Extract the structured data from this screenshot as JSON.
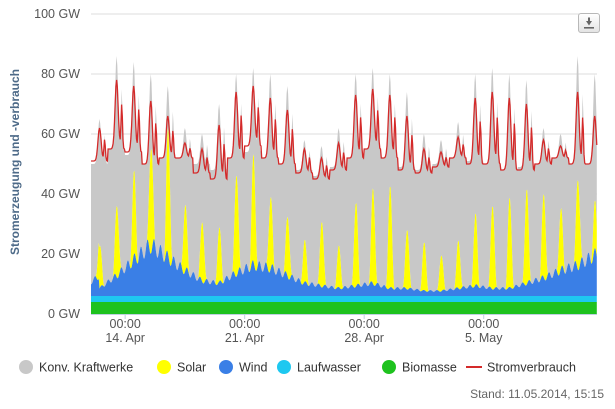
{
  "export_icon": "download-icon",
  "stand_text": "Stand: 11.05.2014, 15:15",
  "chart_data": {
    "type": "area",
    "title": "",
    "ylabel": "Stromerzeugung und -verbrauch",
    "ylim": [
      0,
      100
    ],
    "y_ticks": [
      "0 GW",
      "20 GW",
      "40 GW",
      "60 GW",
      "80 GW",
      "100 GW"
    ],
    "x_range": [
      "2014-04-12T00:00",
      "2014-05-11T15:15"
    ],
    "x_ticks": [
      {
        "time": "00:00",
        "date": "14. Apr",
        "x": "2014-04-14T00:00"
      },
      {
        "time": "00:00",
        "date": "21. Apr",
        "x": "2014-04-21T00:00"
      },
      {
        "time": "00:00",
        "date": "28. Apr",
        "x": "2014-04-28T00:00"
      },
      {
        "time": "00:00",
        "date": "5. May",
        "x": "2014-05-05T00:00"
      }
    ],
    "grid": true,
    "legend_position": "bottom",
    "series_order_bottom_to_top": [
      "Biomasse",
      "Laufwasser",
      "Wind",
      "Solar",
      "Konv. Kraftwerke"
    ],
    "series": [
      {
        "name": "Konv. Kraftwerke",
        "color": "#c8c8c8",
        "kind": "area",
        "daily_profile": {
          "night_total_GW": [
            50,
            55,
            53,
            50,
            52,
            52,
            50,
            48,
            52,
            54,
            52,
            50,
            48,
            46,
            49,
            52,
            55,
            52,
            49,
            48,
            50,
            52,
            51,
            50,
            48,
            49,
            50,
            52,
            50,
            50
          ],
          "peak_total_GW": [
            65,
            86,
            84,
            80,
            76,
            62,
            60,
            70,
            80,
            82,
            80,
            76,
            58,
            56,
            62,
            80,
            82,
            80,
            74,
            60,
            58,
            64,
            80,
            82,
            80,
            78,
            62,
            60,
            86,
            80
          ]
        }
      },
      {
        "name": "Solar",
        "color": "#ffff00",
        "kind": "area",
        "daily_peak_GW": [
          14,
          24,
          28,
          35,
          42,
          22,
          20,
          18,
          34,
          36,
          24,
          20,
          14,
          22,
          14,
          28,
          32,
          34,
          20,
          16,
          12,
          16,
          24,
          28,
          30,
          32,
          28,
          20,
          30,
          16
        ]
      },
      {
        "name": "Wind",
        "color": "#3a7fe6",
        "kind": "area",
        "daily_mean_GW": [
          3,
          8,
          14,
          20,
          15,
          10,
          6,
          5,
          9,
          12,
          11,
          8,
          5,
          4,
          3,
          4,
          5,
          3,
          3,
          2,
          2,
          3,
          4,
          3,
          3,
          5,
          7,
          10,
          12,
          16
        ]
      },
      {
        "name": "Laufwasser",
        "color": "#1ec8f0",
        "kind": "area",
        "level_GW": 2
      },
      {
        "name": "Biomasse",
        "color": "#1ec21e",
        "kind": "area",
        "level_GW": 4
      },
      {
        "name": "Stromverbrauch",
        "color": "#d42a2a",
        "kind": "line",
        "daily_min_GW": [
          51,
          55,
          54,
          50,
          52,
          52,
          47,
          45,
          52,
          56,
          52,
          50,
          47,
          45,
          48,
          52,
          55,
          52,
          48,
          47,
          49,
          52,
          50,
          50,
          48,
          48,
          50,
          52,
          50,
          50
        ],
        "daily_max_GW": [
          62,
          78,
          76,
          71,
          66,
          57,
          55,
          63,
          74,
          76,
          72,
          68,
          55,
          52,
          57,
          73,
          75,
          73,
          66,
          55,
          54,
          59,
          72,
          74,
          72,
          70,
          58,
          56,
          74,
          66
        ]
      }
    ]
  }
}
